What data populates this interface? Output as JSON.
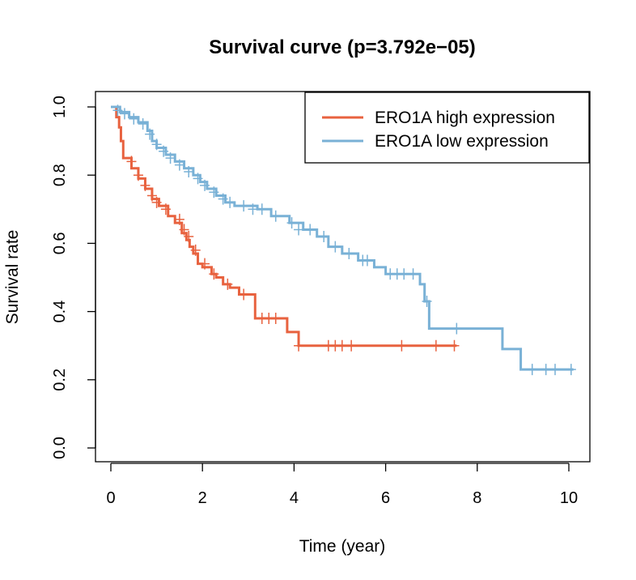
{
  "chart_data": {
    "type": "line",
    "title": "Survival curve (p=3.792e−05)",
    "xlabel": "Time (year)",
    "ylabel": "Survival rate",
    "xlim": [
      0,
      10
    ],
    "ylim": [
      0,
      1
    ],
    "x_ticks": [
      "0",
      "2",
      "4",
      "6",
      "8",
      "10"
    ],
    "y_ticks": [
      "0.0",
      "0.2",
      "0.4",
      "0.6",
      "0.8",
      "1.0"
    ],
    "grid": false,
    "legend_position": "top-right",
    "series": [
      {
        "name": "ERO1A high expression",
        "color": "#e8623f",
        "steps": [
          [
            0,
            1.0
          ],
          [
            0.12,
            0.97
          ],
          [
            0.18,
            0.94
          ],
          [
            0.22,
            0.9
          ],
          [
            0.27,
            0.85
          ],
          [
            0.45,
            0.82
          ],
          [
            0.6,
            0.79
          ],
          [
            0.75,
            0.76
          ],
          [
            0.9,
            0.73
          ],
          [
            1.05,
            0.71
          ],
          [
            1.25,
            0.68
          ],
          [
            1.4,
            0.66
          ],
          [
            1.55,
            0.63
          ],
          [
            1.65,
            0.61
          ],
          [
            1.72,
            0.59
          ],
          [
            1.8,
            0.57
          ],
          [
            1.9,
            0.54
          ],
          [
            2.0,
            0.53
          ],
          [
            2.2,
            0.51
          ],
          [
            2.3,
            0.5
          ],
          [
            2.45,
            0.48
          ],
          [
            2.6,
            0.47
          ],
          [
            2.8,
            0.45
          ],
          [
            3.15,
            0.38
          ],
          [
            3.85,
            0.34
          ],
          [
            4.1,
            0.3
          ],
          [
            7.55,
            0.3
          ]
        ],
        "censored": [
          [
            0.45,
            0.84
          ],
          [
            0.6,
            0.8
          ],
          [
            0.75,
            0.77
          ],
          [
            0.9,
            0.74
          ],
          [
            1.0,
            0.72
          ],
          [
            1.2,
            0.7
          ],
          [
            1.5,
            0.67
          ],
          [
            1.6,
            0.64
          ],
          [
            1.7,
            0.62
          ],
          [
            1.85,
            0.58
          ],
          [
            2.05,
            0.54
          ],
          [
            2.25,
            0.51
          ],
          [
            2.55,
            0.48
          ],
          [
            2.9,
            0.45
          ],
          [
            3.3,
            0.38
          ],
          [
            3.45,
            0.38
          ],
          [
            3.6,
            0.38
          ],
          [
            4.1,
            0.3
          ],
          [
            4.75,
            0.3
          ],
          [
            4.9,
            0.3
          ],
          [
            5.05,
            0.3
          ],
          [
            5.25,
            0.3
          ],
          [
            6.35,
            0.3
          ],
          [
            7.1,
            0.3
          ],
          [
            7.5,
            0.3
          ]
        ]
      },
      {
        "name": "ERO1A low expression",
        "color": "#79b1d6",
        "steps": [
          [
            0,
            1.0
          ],
          [
            0.2,
            0.985
          ],
          [
            0.4,
            0.97
          ],
          [
            0.6,
            0.955
          ],
          [
            0.8,
            0.93
          ],
          [
            0.9,
            0.9
          ],
          [
            1.0,
            0.88
          ],
          [
            1.2,
            0.86
          ],
          [
            1.4,
            0.84
          ],
          [
            1.6,
            0.82
          ],
          [
            1.8,
            0.8
          ],
          [
            1.95,
            0.78
          ],
          [
            2.1,
            0.76
          ],
          [
            2.3,
            0.74
          ],
          [
            2.5,
            0.72
          ],
          [
            2.7,
            0.71
          ],
          [
            3.2,
            0.7
          ],
          [
            3.5,
            0.68
          ],
          [
            3.9,
            0.66
          ],
          [
            4.2,
            0.64
          ],
          [
            4.5,
            0.62
          ],
          [
            4.75,
            0.59
          ],
          [
            5.05,
            0.57
          ],
          [
            5.4,
            0.55
          ],
          [
            5.75,
            0.53
          ],
          [
            6.0,
            0.51
          ],
          [
            6.65,
            0.51
          ],
          [
            6.75,
            0.48
          ],
          [
            6.85,
            0.43
          ],
          [
            6.95,
            0.35
          ],
          [
            8.55,
            0.29
          ],
          [
            8.95,
            0.23
          ],
          [
            10.1,
            0.23
          ]
        ],
        "censored": [
          [
            0.15,
            0.99
          ],
          [
            0.3,
            0.98
          ],
          [
            0.5,
            0.965
          ],
          [
            0.7,
            0.95
          ],
          [
            0.85,
            0.92
          ],
          [
            1.0,
            0.89
          ],
          [
            1.15,
            0.87
          ],
          [
            1.3,
            0.85
          ],
          [
            1.5,
            0.83
          ],
          [
            1.7,
            0.81
          ],
          [
            1.9,
            0.79
          ],
          [
            2.05,
            0.77
          ],
          [
            2.25,
            0.75
          ],
          [
            2.45,
            0.73
          ],
          [
            2.6,
            0.72
          ],
          [
            2.9,
            0.71
          ],
          [
            3.1,
            0.7
          ],
          [
            3.3,
            0.7
          ],
          [
            3.6,
            0.68
          ],
          [
            3.95,
            0.66
          ],
          [
            4.1,
            0.64
          ],
          [
            4.35,
            0.64
          ],
          [
            4.65,
            0.62
          ],
          [
            4.9,
            0.59
          ],
          [
            5.2,
            0.57
          ],
          [
            5.5,
            0.55
          ],
          [
            5.6,
            0.55
          ],
          [
            6.1,
            0.51
          ],
          [
            6.25,
            0.51
          ],
          [
            6.4,
            0.51
          ],
          [
            6.6,
            0.51
          ],
          [
            6.9,
            0.43
          ],
          [
            7.55,
            0.35
          ],
          [
            9.2,
            0.23
          ],
          [
            9.5,
            0.23
          ],
          [
            9.7,
            0.23
          ],
          [
            10.05,
            0.23
          ]
        ]
      }
    ]
  }
}
